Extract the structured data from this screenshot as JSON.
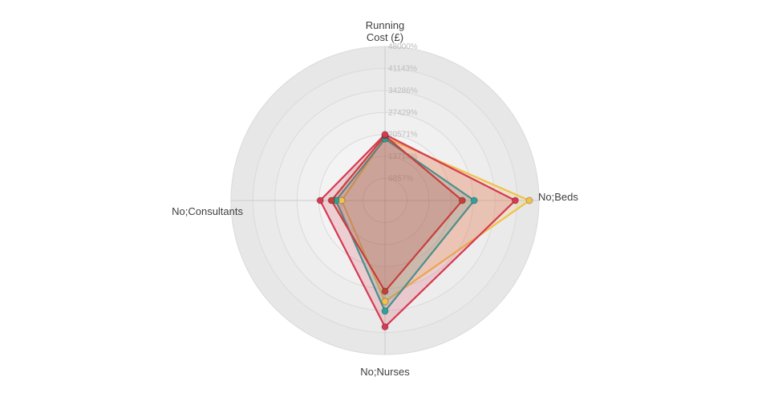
{
  "chart_data": {
    "type": "radar",
    "title": "",
    "categories": [
      "Running Cost (£)",
      "No;Beds",
      "No;Nurses",
      "No;Consultants"
    ],
    "category_positions": [
      "top",
      "right",
      "bottom",
      "left"
    ],
    "axis_labels": {
      "top_line1": "Running",
      "top_line2": "Cost (£)",
      "right": "No;Beds",
      "bottom": "No;Nurses",
      "left": "No;Consultants"
    },
    "scale": {
      "min": 0,
      "max": 48000,
      "unit": "%",
      "rings": 7
    },
    "tick_labels": [
      "6857%",
      "13714%",
      "20571%",
      "27429%",
      "34286%",
      "41143%",
      "48000%"
    ],
    "grid": {
      "shape": "circular",
      "outer_fill": "#e7e7e7",
      "inner_fill": "#f9f9f9",
      "ring_stroke": "#dadada",
      "cross_line_color": "#cccccc"
    },
    "legend": "none",
    "series": [
      {
        "name": "yellow",
        "color": "#f1c14b",
        "values": [
          19700,
          45000,
          31500,
          13500
        ]
      },
      {
        "name": "teal",
        "color": "#2ba39b",
        "values": [
          19200,
          27800,
          34500,
          15300
        ]
      },
      {
        "name": "red-inner",
        "color": "#c2403a",
        "values": [
          20200,
          24100,
          28300,
          16700
        ]
      },
      {
        "name": "red-outer",
        "color": "#d63a52",
        "values": [
          20571,
          40600,
          39400,
          20200
        ]
      }
    ]
  }
}
